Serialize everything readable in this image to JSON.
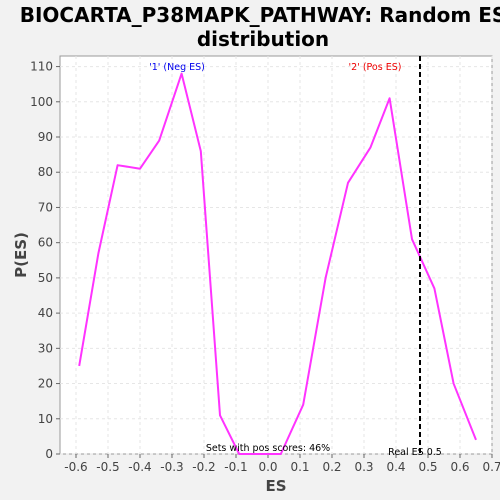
{
  "chart_data": {
    "type": "line",
    "title": "BIOCARTA_P38MAPK_PATHWAY: Random ES distribution",
    "title_lines": [
      "BIOCARTA_P38MAPK_PATHWAY: Random ES",
      "distribution"
    ],
    "xlabel": "ES",
    "ylabel": "P(ES)",
    "xlim": [
      -0.65,
      0.7
    ],
    "ylim": [
      0,
      113
    ],
    "xticks": [
      -0.6,
      -0.5,
      -0.4,
      -0.3,
      -0.2,
      -0.1,
      0.0,
      0.1,
      0.2,
      0.3,
      0.4,
      0.5,
      0.6,
      0.7
    ],
    "xtick_labels": [
      "-0.6",
      "-0.5",
      "-0.4",
      "-0.3",
      "-0.2",
      "-0.1",
      "0.0",
      "0.1",
      "0.2",
      "0.3",
      "0.4",
      "0.5",
      "0.6",
      "0.7"
    ],
    "yticks": [
      0,
      10,
      20,
      30,
      40,
      50,
      60,
      70,
      80,
      90,
      100,
      110
    ],
    "ytick_labels": [
      "0",
      "10",
      "20",
      "30",
      "40",
      "50",
      "60",
      "70",
      "80",
      "90",
      "100",
      "110"
    ],
    "grid": true,
    "series": [
      {
        "color": "#ff33ff",
        "x": [
          -0.59,
          -0.53,
          -0.47,
          -0.4,
          -0.34,
          -0.27,
          -0.21,
          -0.15,
          -0.09,
          -0.02,
          0.04,
          0.11,
          0.18,
          0.25,
          0.32,
          0.38,
          0.45,
          0.52,
          0.58,
          0.65
        ],
        "y": [
          25,
          57,
          82,
          81,
          89,
          108,
          86,
          11,
          0,
          0,
          0,
          14,
          50,
          77,
          87,
          101,
          61,
          47,
          20,
          4
        ]
      }
    ],
    "real_es": 0.475,
    "real_es_label": "Real ES 0.5",
    "annotations": {
      "neg": {
        "text": "'1' (Neg ES)",
        "color": "#0000ee"
      },
      "pos": {
        "text": "'2' (Pos ES)",
        "color": "#ee0000"
      },
      "pos_scores": {
        "text": "Sets with pos scores: 46%",
        "color": "#000000"
      }
    }
  }
}
